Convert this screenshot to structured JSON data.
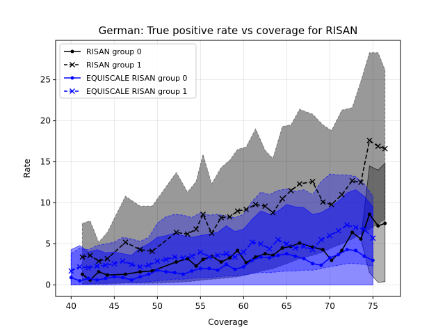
{
  "chart_data": {
    "type": "line",
    "title": "German: True positive rate vs coverage for RISAN",
    "xlabel": "Coverage",
    "ylabel": "Rate",
    "xlim": [
      38.2,
      78.2
    ],
    "ylim": [
      -1.4,
      29.8
    ],
    "xticks": [
      40,
      45,
      50,
      55,
      60,
      65,
      70,
      75
    ],
    "yticks": [
      0,
      5,
      10,
      15,
      20,
      25
    ],
    "grid": true,
    "legend_position": "top-left",
    "series": [
      {
        "name": "RISAN group 0",
        "color": "#000000",
        "linestyle": "solid",
        "marker": "dot",
        "x": [
          41.3,
          42.2,
          43.2,
          44.2,
          46.3,
          48.0,
          49.4,
          52.2,
          53.5,
          54.5,
          55.3,
          56.3,
          57.4,
          58.4,
          59.3,
          60.3,
          61.4,
          62.5,
          63.4,
          64.5,
          65.5,
          66.5,
          68.0,
          69.2,
          70.2,
          71.4,
          72.6,
          73.6,
          74.6,
          75.6,
          76.4
        ],
        "values": [
          1.3,
          0.6,
          1.6,
          1.2,
          1.3,
          1.6,
          1.7,
          2.8,
          3.2,
          2.3,
          3.1,
          3.5,
          2.8,
          3.3,
          4.2,
          2.7,
          3.4,
          3.8,
          3.6,
          4.5,
          4.7,
          5.1,
          4.6,
          4.3,
          3.0,
          4.2,
          6.4,
          5.6,
          8.6,
          7.2,
          7.5
        ],
        "band_lower": [
          1.3,
          0.6,
          1.6,
          1.2,
          1.3,
          1.6,
          1.7,
          2.8,
          3.2,
          2.3,
          3.1,
          3.5,
          2.8,
          3.3,
          4.2,
          2.7,
          3.4,
          3.8,
          3.6,
          4.5,
          4.7,
          5.1,
          4.6,
          4.3,
          3.0,
          4.2,
          6.4,
          5.6,
          1.5,
          0.3,
          0.4
        ],
        "band_upper": [
          1.3,
          0.6,
          1.6,
          1.2,
          1.3,
          1.6,
          1.7,
          2.8,
          3.2,
          2.3,
          3.1,
          3.5,
          2.8,
          3.3,
          4.2,
          2.7,
          3.4,
          3.8,
          3.6,
          4.5,
          4.7,
          5.1,
          4.6,
          4.3,
          3.0,
          4.2,
          6.4,
          5.6,
          14.5,
          14.0,
          14.8
        ]
      },
      {
        "name": "RISAN group 1",
        "color": "#000000",
        "linestyle": "dashed",
        "marker": "x",
        "x": [
          41.3,
          42.2,
          43.2,
          44.2,
          46.3,
          48.0,
          49.4,
          52.2,
          53.5,
          54.5,
          55.3,
          56.3,
          57.4,
          58.4,
          59.3,
          60.3,
          61.4,
          62.5,
          63.4,
          64.5,
          65.5,
          66.5,
          68.0,
          69.2,
          70.2,
          71.4,
          72.6,
          73.6,
          74.6,
          75.6,
          76.4
        ],
        "values": [
          3.4,
          3.6,
          2.9,
          3.2,
          5.2,
          4.3,
          4.1,
          6.4,
          6.2,
          6.8,
          8.6,
          6.3,
          8.2,
          8.3,
          9.0,
          9.2,
          9.8,
          9.6,
          8.8,
          10.5,
          11.5,
          12.3,
          12.6,
          10.1,
          9.8,
          11.0,
          12.7,
          12.5,
          17.6,
          16.9,
          16.6
        ],
        "band_lower": [
          0.1,
          0.1,
          0.1,
          0.1,
          0.2,
          0.2,
          0.2,
          0.3,
          0.4,
          0.5,
          0.6,
          0.7,
          0.8,
          0.9,
          1.0,
          1.2,
          1.5,
          1.8,
          2.0,
          2.4,
          2.8,
          3.2,
          3.6,
          4.0,
          4.5,
          5.0,
          5.6,
          6.2,
          6.8,
          7.4,
          8.0
        ],
        "band_upper": [
          7.5,
          7.8,
          5.2,
          6.4,
          10.8,
          9.6,
          9.6,
          13.7,
          11.3,
          12.6,
          15.9,
          12.3,
          14.3,
          15.2,
          16.5,
          16.8,
          19.0,
          16.4,
          15.4,
          19.3,
          19.5,
          21.4,
          20.8,
          19.5,
          18.8,
          21.3,
          21.6,
          24.8,
          28.3,
          28.3,
          26.2
        ]
      },
      {
        "name": "EQUISCALE RISAN group 0",
        "color": "#0000ff",
        "linestyle": "solid",
        "marker": "dot",
        "x": [
          40.0,
          41.0,
          42.0,
          43.0,
          44.0,
          45.0,
          46.0,
          47.0,
          48.0,
          49.0,
          50.0,
          51.0,
          52.0,
          53.0,
          54.0,
          55.0,
          56.0,
          57.0,
          58.0,
          59.0,
          60.0,
          61.0,
          62.0,
          63.0,
          64.0,
          65.0,
          66.0,
          67.0,
          68.0,
          69.0,
          70.0,
          71.0,
          72.0,
          73.0,
          74.0,
          75.0
        ],
        "values": [
          0.9,
          0.5,
          0.8,
          0.6,
          0.8,
          1.0,
          0.9,
          0.6,
          1.0,
          1.3,
          1.8,
          1.6,
          1.5,
          1.3,
          1.7,
          2.0,
          2.0,
          1.8,
          2.5,
          1.9,
          2.2,
          3.0,
          3.4,
          3.3,
          3.6,
          3.8,
          3.5,
          3.2,
          2.6,
          2.4,
          3.3,
          3.7,
          4.3,
          4.2,
          3.5,
          3.0
        ],
        "band_lower": [
          0.0,
          0.0,
          0.0,
          0.0,
          0.0,
          0.0,
          0.0,
          0.0,
          0.0,
          0.0,
          0.0,
          0.0,
          0.0,
          0.0,
          0.0,
          0.0,
          0.0,
          0.0,
          0.0,
          0.0,
          0.0,
          0.0,
          0.0,
          0.0,
          0.0,
          0.0,
          0.0,
          0.0,
          0.0,
          0.0,
          0.0,
          0.0,
          0.0,
          0.0,
          0.0,
          0.0
        ],
        "band_upper": [
          4.3,
          4.8,
          4.0,
          4.3,
          3.9,
          4.0,
          3.8,
          3.6,
          4.5,
          5.0,
          5.8,
          6.0,
          6.3,
          6.0,
          5.8,
          6.0,
          6.2,
          6.4,
          7.2,
          6.5,
          6.8,
          8.0,
          9.0,
          8.6,
          9.0,
          9.8,
          9.5,
          9.4,
          8.6,
          8.8,
          9.4,
          10.2,
          11.2,
          11.6,
          10.8,
          9.5
        ]
      },
      {
        "name": "EQUISCALE RISAN group 1",
        "color": "#0000ff",
        "linestyle": "dashed",
        "marker": "x",
        "x": [
          40.0,
          41.0,
          42.0,
          43.0,
          44.0,
          45.0,
          46.0,
          47.0,
          48.0,
          49.0,
          50.0,
          51.0,
          52.0,
          53.0,
          54.0,
          55.0,
          56.0,
          57.0,
          58.0,
          59.0,
          60.0,
          61.0,
          62.0,
          63.0,
          64.0,
          65.0,
          66.0,
          67.0,
          68.0,
          69.0,
          70.0,
          71.0,
          72.0,
          73.0,
          74.0,
          75.0
        ],
        "values": [
          1.7,
          2.2,
          2.1,
          2.3,
          2.4,
          2.6,
          2.9,
          2.5,
          2.2,
          2.4,
          2.9,
          3.1,
          3.4,
          3.3,
          3.5,
          4.0,
          3.4,
          3.6,
          3.8,
          3.4,
          4.0,
          5.2,
          5.0,
          4.4,
          5.5,
          5.0,
          4.5,
          4.7,
          4.3,
          5.5,
          6.0,
          6.6,
          7.3,
          7.0,
          6.8,
          5.7
        ],
        "band_lower": [
          0.0,
          0.1,
          0.1,
          0.2,
          0.2,
          0.3,
          0.3,
          0.3,
          0.3,
          0.4,
          0.5,
          0.6,
          0.7,
          0.7,
          0.8,
          0.9,
          0.9,
          1.0,
          1.1,
          1.1,
          1.2,
          1.4,
          1.5,
          1.5,
          1.6,
          1.7,
          1.7,
          1.8,
          1.8,
          2.0,
          2.2,
          2.4,
          2.6,
          2.6,
          2.5,
          2.3
        ],
        "band_upper": [
          3.8,
          4.5,
          4.3,
          4.8,
          5.0,
          5.2,
          5.8,
          5.6,
          5.3,
          5.8,
          7.5,
          8.3,
          8.6,
          8.5,
          8.2,
          8.8,
          8.5,
          8.6,
          8.4,
          8.2,
          8.6,
          10.2,
          11.3,
          11.0,
          11.5,
          11.7,
          11.4,
          11.6,
          11.0,
          12.6,
          13.5,
          13.4,
          13.4,
          13.2,
          12.3,
          10.8
        ]
      }
    ]
  }
}
